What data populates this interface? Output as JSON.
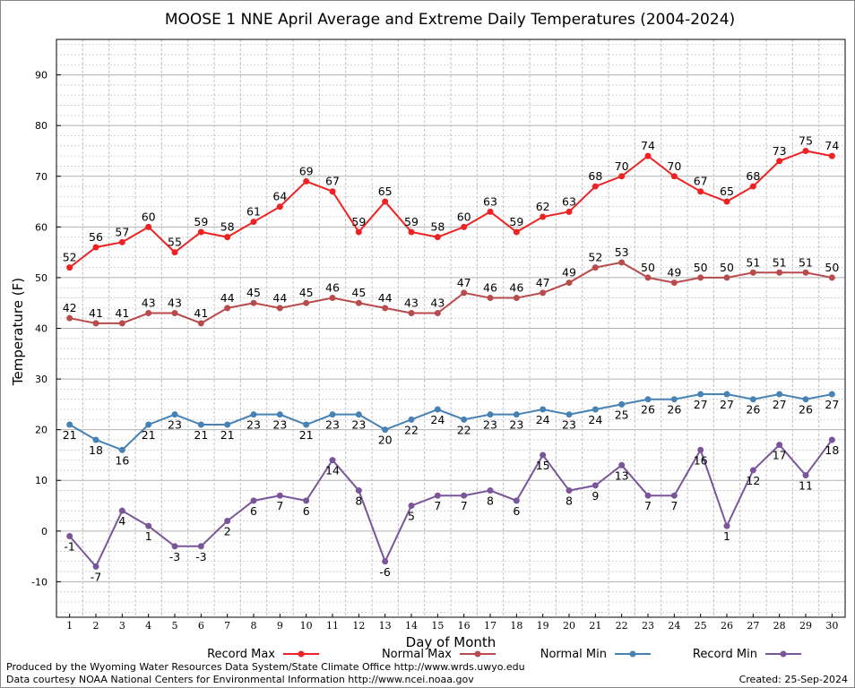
{
  "chart_data": {
    "type": "line",
    "title": "MOOSE 1 NNE April Average and Extreme Daily Temperatures (2004-2024)",
    "xlabel": "Day of Month",
    "ylabel": "Temperature (F)",
    "xlim": [
      0.5,
      30.5
    ],
    "ylim": [
      -17,
      97
    ],
    "x": [
      1,
      2,
      3,
      4,
      5,
      6,
      7,
      8,
      9,
      10,
      11,
      12,
      13,
      14,
      15,
      16,
      17,
      18,
      19,
      20,
      21,
      22,
      23,
      24,
      25,
      26,
      27,
      28,
      29,
      30
    ],
    "yticks": [
      -10,
      0,
      10,
      20,
      30,
      40,
      50,
      60,
      70,
      80,
      90
    ],
    "grid": true,
    "legend_position": "bottom",
    "series": [
      {
        "name": "Record Max",
        "color": "#ee2222",
        "label_side": "above",
        "values": [
          52,
          56,
          57,
          60,
          55,
          59,
          58,
          61,
          64,
          69,
          67,
          59,
          65,
          59,
          58,
          60,
          63,
          59,
          62,
          63,
          68,
          70,
          74,
          70,
          67,
          65,
          68,
          73,
          75,
          74
        ]
      },
      {
        "name": "Normal Max",
        "color": "#b84b4b",
        "label_side": "above",
        "values": [
          42,
          41,
          41,
          43,
          43,
          41,
          44,
          45,
          44,
          45,
          46,
          45,
          44,
          43,
          43,
          47,
          46,
          46,
          47,
          49,
          52,
          53,
          50,
          49,
          50,
          50,
          51,
          51,
          51,
          50
        ]
      },
      {
        "name": "Normal Min",
        "color": "#4682b4",
        "label_side": "below",
        "values": [
          21,
          18,
          16,
          21,
          23,
          21,
          21,
          23,
          23,
          21,
          23,
          23,
          20,
          22,
          24,
          22,
          23,
          23,
          24,
          23,
          24,
          25,
          26,
          26,
          27,
          27,
          26,
          27,
          26,
          27
        ]
      },
      {
        "name": "Record Min",
        "color": "#7a559a",
        "label_side": "below",
        "values": [
          -1,
          -7,
          4,
          1,
          -3,
          -3,
          2,
          6,
          7,
          6,
          14,
          8,
          -6,
          5,
          7,
          7,
          8,
          6,
          15,
          8,
          9,
          13,
          7,
          7,
          16,
          1,
          12,
          17,
          11,
          18
        ]
      }
    ]
  },
  "footer": {
    "produced_by": "Produced by the Wyoming Water Resources Data System/State Climate Office http://www.wrds.uwyo.edu",
    "data_courtesy": "Data courtesy NOAA National Centers for Environmental Information http://www.ncei.noaa.gov",
    "created": "Created:  25-Sep-2024"
  }
}
